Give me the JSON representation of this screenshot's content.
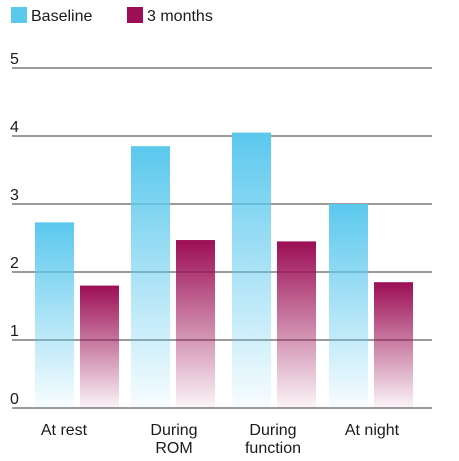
{
  "chart_data": {
    "type": "bar",
    "categories": [
      "At rest",
      "During ROM",
      "During function",
      "At night"
    ],
    "category_lines": [
      [
        "At rest"
      ],
      [
        "During",
        "ROM"
      ],
      [
        "During",
        "function"
      ],
      [
        "At night"
      ]
    ],
    "series": [
      {
        "name": "Baseline",
        "values": [
          2.73,
          3.85,
          4.05,
          3.0
        ],
        "color": "#5bc8ee"
      },
      {
        "name": "3 months",
        "values": [
          1.8,
          2.47,
          2.45,
          1.85
        ],
        "color": "#9c0e55"
      }
    ],
    "ylim": [
      0,
      5
    ],
    "yticks": [
      0,
      1,
      2,
      3,
      4,
      5
    ],
    "grid": true,
    "legend_position": "top-left",
    "title": "",
    "xlabel": "",
    "ylabel": ""
  }
}
